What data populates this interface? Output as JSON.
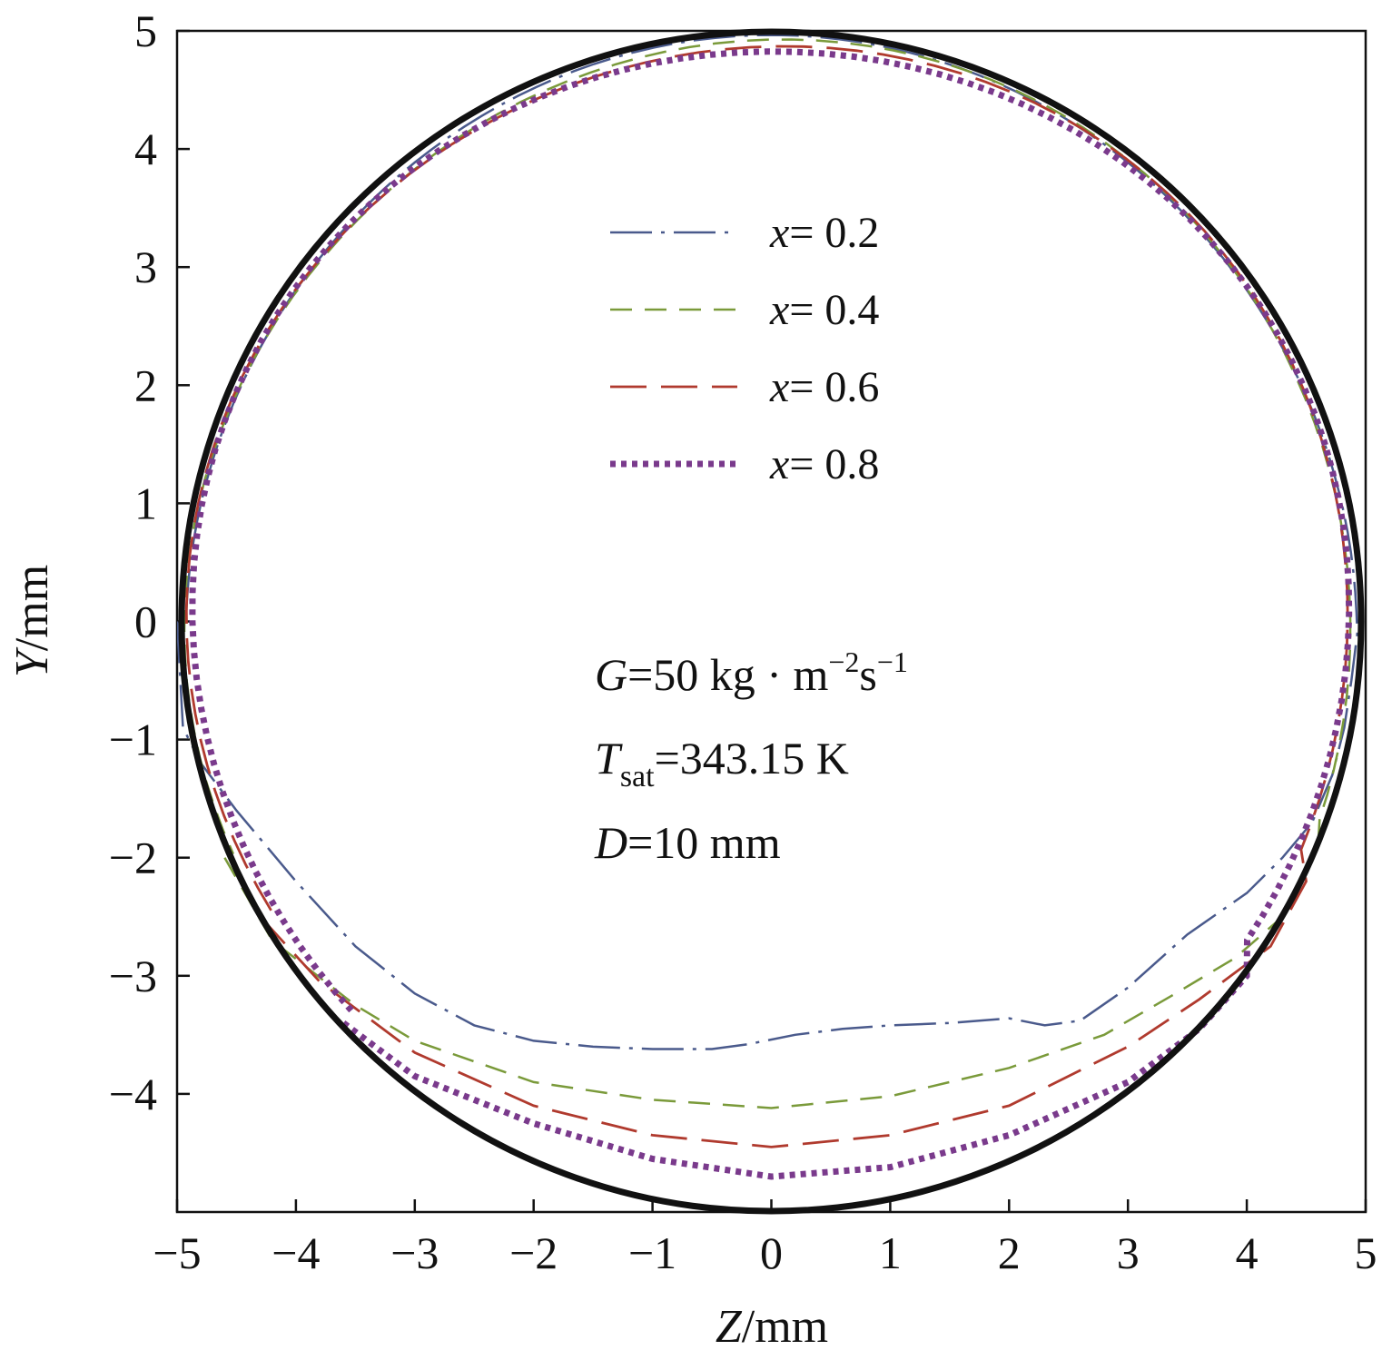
{
  "chart_data": {
    "type": "line",
    "xlabel": {
      "symbol": "Z",
      "unit": "/mm"
    },
    "ylabel": {
      "symbol": "Y",
      "unit": "/mm"
    },
    "xlim": [
      -5,
      5
    ],
    "ylim": [
      -5,
      5
    ],
    "xticks": [
      "−5",
      "−4",
      "−3",
      "−2",
      "−1",
      "0",
      "1",
      "2",
      "3",
      "4",
      "5"
    ],
    "yticks": [
      "5",
      "4",
      "3",
      "2",
      "1",
      "0",
      "−1",
      "−2",
      "−3",
      "−4"
    ],
    "xtick_values": [
      -5,
      -4,
      -3,
      -2,
      -1,
      0,
      1,
      2,
      3,
      4,
      5
    ],
    "ytick_values": [
      5,
      4,
      3,
      2,
      1,
      0,
      -1,
      -2,
      -3,
      -4
    ],
    "grid": false,
    "legend_position": "top-center",
    "wall": {
      "radius": 5,
      "color": "#111111"
    },
    "series": [
      {
        "name": "0.2",
        "label_prefix": "x",
        "color": "#4a5a8c",
        "style": "dashdot",
        "points": [
          [
            -5,
            0
          ],
          [
            -4.95,
            -0.9
          ],
          [
            -4.8,
            -1.2
          ],
          [
            -4.5,
            -1.6
          ],
          [
            -4.0,
            -2.2
          ],
          [
            -3.5,
            -2.75
          ],
          [
            -3.0,
            -3.15
          ],
          [
            -2.5,
            -3.42
          ],
          [
            -2.0,
            -3.55
          ],
          [
            -1.5,
            -3.6
          ],
          [
            -1.0,
            -3.62
          ],
          [
            -0.5,
            -3.62
          ],
          [
            -0.2,
            -3.58
          ],
          [
            0.2,
            -3.5
          ],
          [
            0.6,
            -3.45
          ],
          [
            1.0,
            -3.42
          ],
          [
            1.5,
            -3.4
          ],
          [
            2.0,
            -3.36
          ],
          [
            2.3,
            -3.42
          ],
          [
            2.6,
            -3.38
          ],
          [
            3.0,
            -3.1
          ],
          [
            3.5,
            -2.65
          ],
          [
            4.0,
            -2.3
          ],
          [
            4.3,
            -2.0
          ],
          [
            4.55,
            -1.7
          ],
          [
            4.72,
            -1.3
          ],
          [
            4.82,
            -0.9
          ],
          [
            4.88,
            -0.5
          ],
          [
            4.93,
            -0.1
          ]
        ]
      },
      {
        "name": "0.4",
        "label_prefix": "x",
        "color": "#7a9a3a",
        "style": "dashed",
        "points": [
          [
            -4.6,
            -2.0
          ],
          [
            -4.2,
            -2.7
          ],
          [
            -3.5,
            -3.25
          ],
          [
            -3.0,
            -3.55
          ],
          [
            -2.0,
            -3.9
          ],
          [
            -1.0,
            -4.05
          ],
          [
            0.0,
            -4.12
          ],
          [
            1.0,
            -4.02
          ],
          [
            2.0,
            -3.78
          ],
          [
            2.8,
            -3.5
          ],
          [
            3.4,
            -3.15
          ],
          [
            3.9,
            -2.85
          ],
          [
            4.3,
            -2.5
          ],
          [
            4.6,
            -1.9
          ]
        ]
      },
      {
        "name": "0.6",
        "label_prefix": "x",
        "color": "#b03a2e",
        "style": "longdash",
        "points": [
          [
            -4.3,
            -2.5
          ],
          [
            -3.8,
            -3.05
          ],
          [
            -3.0,
            -3.65
          ],
          [
            -2.0,
            -4.1
          ],
          [
            -1.0,
            -4.35
          ],
          [
            0.0,
            -4.45
          ],
          [
            1.0,
            -4.35
          ],
          [
            2.0,
            -4.1
          ],
          [
            3.0,
            -3.6
          ],
          [
            3.6,
            -3.2
          ],
          [
            4.2,
            -2.75
          ],
          [
            4.5,
            -2.2
          ]
        ]
      },
      {
        "name": "0.8",
        "label_prefix": "x",
        "color": "#7a3a8c",
        "style": "dotted",
        "points": [
          [
            -3.6,
            -3.4
          ],
          [
            -3.0,
            -3.85
          ],
          [
            -2.0,
            -4.25
          ],
          [
            -1.0,
            -4.55
          ],
          [
            0.0,
            -4.7
          ],
          [
            1.0,
            -4.62
          ],
          [
            2.0,
            -4.35
          ],
          [
            3.0,
            -3.9
          ],
          [
            3.6,
            -3.45
          ],
          [
            4.0,
            -3.0
          ]
        ]
      }
    ],
    "annotations": {
      "G": {
        "symbol": "G",
        "value": "=50 kg · m",
        "exp1": "−2",
        "mid": "s",
        "exp2": "−1"
      },
      "Tsat": {
        "symbol": "T",
        "sub": "sat",
        "value": "=343.15 K"
      },
      "D": {
        "symbol": "D",
        "value": "=10 mm"
      }
    }
  }
}
